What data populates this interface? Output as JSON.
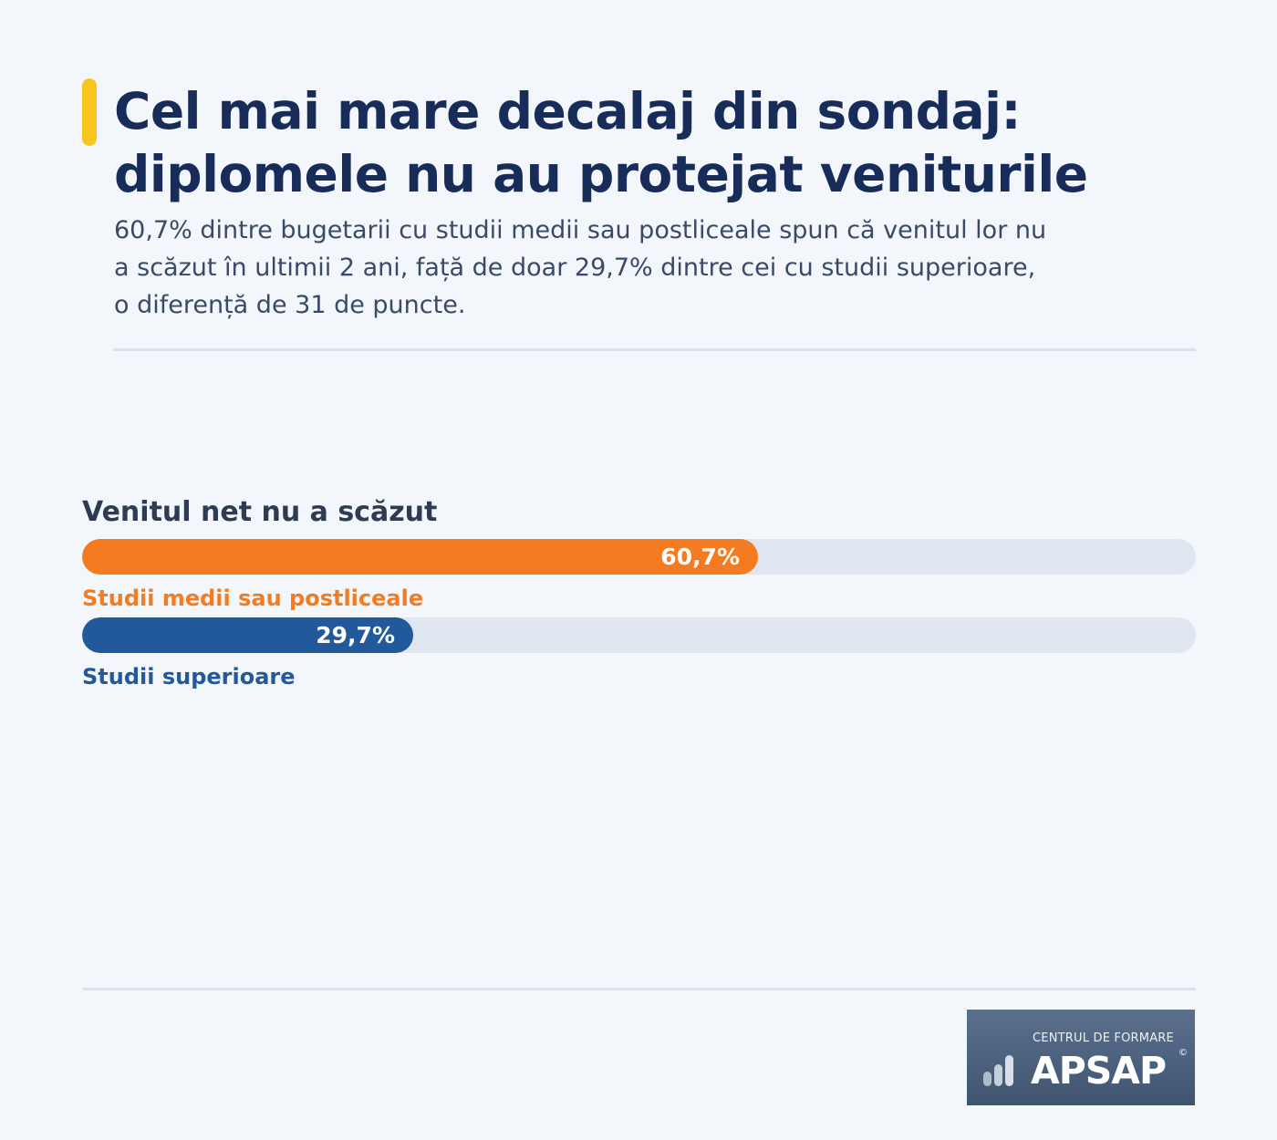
{
  "title": {
    "line1": "Cel mai mare decalaj din sondaj:",
    "line2": "diplomele nu au protejat veniturile"
  },
  "subtitle": {
    "line1": "60,7% dintre bugetarii cu studii medii sau postliceale spun că venitul lor nu",
    "line2": "a scăzut în ultimii 2 ani, față de doar 29,7% dintre cei cu studii superioare,",
    "line3": "o diferență de 31 de puncte."
  },
  "colors": {
    "accent": "#f7c51b",
    "title": "#182c5a",
    "series_orange": "#f47b20",
    "series_blue": "#22589c",
    "track": "#dfe6f0"
  },
  "chart_data": {
    "type": "bar",
    "orientation": "horizontal",
    "title": "Venitul net nu a scăzut",
    "xlim": [
      0,
      100
    ],
    "grid": false,
    "categories": [
      "Studii medii sau postliceale",
      "Studii superioare"
    ],
    "values": [
      60.7,
      29.7
    ],
    "value_labels": [
      "60,7%",
      "29,7%"
    ],
    "colors": [
      "#f47b20",
      "#22589c"
    ]
  },
  "logo": {
    "top_text": "CENTRUL DE FORMARE",
    "main_text": "APSAP",
    "copyright": "©",
    "icon": "bar-chart-icon"
  }
}
